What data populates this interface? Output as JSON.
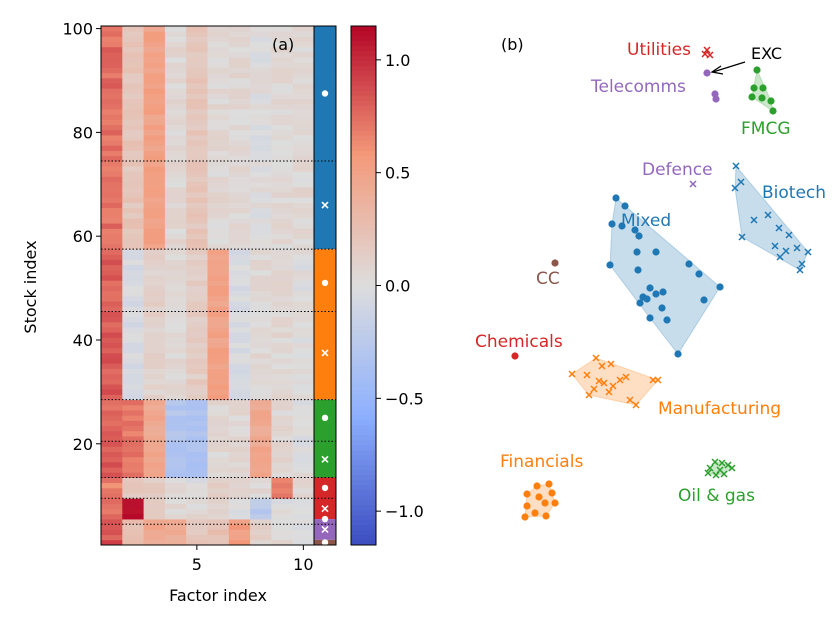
{
  "chart_data": [
    {
      "type": "heatmap",
      "panel_label": "(a)",
      "xlabel": "Factor index",
      "ylabel": "Stock index",
      "xticks": [
        5,
        10
      ],
      "yticks": [
        20,
        40,
        60,
        80,
        100
      ],
      "xlim": [
        0.5,
        10.5
      ],
      "ylim": [
        0.5,
        100.5
      ],
      "n_factors": 10,
      "n_stocks": 100,
      "group_boundaries": [
        4.5,
        9.5,
        13.5,
        20.5,
        28.5,
        45.5,
        57.5,
        74.5
      ],
      "base_loading": [
        0.75,
        0.2,
        0.15,
        0.0,
        0.0,
        0.05,
        0.0,
        0.0,
        0.0,
        0.0
      ],
      "blocks": [
        {
          "rows": [
            58,
            100
          ],
          "loadings": [
            0.0,
            0.0,
            0.35,
            0.05,
            0.2,
            0.0,
            0.05,
            0.0,
            0.05,
            0.05
          ]
        },
        {
          "rows": [
            29,
            57
          ],
          "loadings": [
            0.05,
            -0.25,
            -0.05,
            0.05,
            0.15,
            0.45,
            -0.05,
            0.05,
            0.05,
            0.0
          ]
        },
        {
          "rows": [
            14,
            28
          ],
          "loadings": [
            0.05,
            0.5,
            0.3,
            -0.3,
            -0.35,
            0.0,
            0.05,
            0.45,
            0.05,
            0.0
          ]
        },
        {
          "rows": [
            10,
            13
          ],
          "loadings": [
            -0.1,
            0.0,
            0.0,
            0.05,
            0.0,
            0.05,
            0.05,
            0.05,
            0.7,
            0.05
          ]
        },
        {
          "rows": [
            6,
            9
          ],
          "loadings": [
            0.0,
            0.9,
            0.0,
            0.05,
            0.05,
            0.0,
            0.0,
            -0.25,
            0.0,
            0.0
          ]
        },
        {
          "rows": [
            1,
            5
          ],
          "loadings": [
            0.1,
            0.05,
            0.3,
            0.4,
            0.2,
            0.2,
            0.55,
            0.1,
            0.05,
            0.0
          ]
        }
      ],
      "group_bar": [
        {
          "rows": [
            58,
            100
          ],
          "color": "#1f77b4"
        },
        {
          "rows": [
            29,
            57
          ],
          "color": "#ff7f0e"
        },
        {
          "rows": [
            14,
            28
          ],
          "color": "#2ca02c"
        },
        {
          "rows": [
            6,
            13
          ],
          "color": "#d62728"
        },
        {
          "rows": [
            2,
            5
          ],
          "color": "#9467bd"
        },
        {
          "rows": [
            1,
            1
          ],
          "color": "#8c564b"
        }
      ],
      "group_markers": [
        {
          "y": 87.5,
          "marker": "dot"
        },
        {
          "y": 66,
          "marker": "cross"
        },
        {
          "y": 51,
          "marker": "dot"
        },
        {
          "y": 37.5,
          "marker": "cross"
        },
        {
          "y": 25,
          "marker": "dot"
        },
        {
          "y": 17,
          "marker": "cross"
        },
        {
          "y": 11.5,
          "marker": "dot"
        },
        {
          "y": 7.5,
          "marker": "cross"
        },
        {
          "y": 5.5,
          "marker": "dot"
        },
        {
          "y": 3.5,
          "marker": "cross"
        },
        {
          "y": 1,
          "marker": "dot"
        }
      ],
      "colorbar": {
        "range": [
          -1.15,
          1.15
        ],
        "ticks": [
          -1.0,
          -0.5,
          0.0,
          0.5,
          1.0
        ],
        "tick_labels": [
          "−1.0",
          "−0.5",
          "0.0",
          "0.5",
          "1.0"
        ],
        "colormap": "coolwarm"
      }
    },
    {
      "type": "scatter",
      "panel_label": "(b)",
      "clusters": [
        {
          "name": "Utilities",
          "color": "#d62728",
          "marker": "cross",
          "points": [
            [
              707,
              50
            ],
            [
              710,
              55
            ],
            [
              705,
              54
            ]
          ]
        },
        {
          "name": "Telecomms",
          "color": "#9467bd",
          "marker": "dot",
          "points": [
            [
              707,
              73
            ],
            [
              715,
              94
            ],
            [
              716,
              99
            ]
          ]
        },
        {
          "name": "FMCG",
          "color": "#2ca02c",
          "marker": "dot",
          "hull": true,
          "points": [
            [
              757,
              70
            ],
            [
              754,
              88
            ],
            [
              763,
              88
            ],
            [
              752,
              97
            ],
            [
              762,
              98
            ],
            [
              771,
              101
            ],
            [
              773,
              111
            ]
          ]
        },
        {
          "name": "Defence",
          "color": "#9467bd",
          "marker": "cross",
          "points": [
            [
              693,
              184
            ]
          ]
        },
        {
          "name": "Biotech",
          "color": "#1f77b4",
          "marker": "cross",
          "hull": true,
          "points": [
            [
              736,
              166
            ],
            [
              741,
              182
            ],
            [
              735,
              188
            ],
            [
              754,
              220
            ],
            [
              768,
              215
            ],
            [
              742,
              237
            ],
            [
              775,
              246
            ],
            [
              779,
              228
            ],
            [
              789,
              235
            ],
            [
              786,
              251
            ],
            [
              780,
              257
            ],
            [
              797,
              248
            ],
            [
              808,
              252
            ],
            [
              802,
              264
            ],
            [
              800,
              270
            ]
          ]
        },
        {
          "name": "Mixed",
          "color": "#1f77b4",
          "marker": "dot",
          "hull": true,
          "points": [
            [
              616,
              198
            ],
            [
              625,
              206
            ],
            [
              612,
              224
            ],
            [
              622,
              226
            ],
            [
              635,
              230
            ],
            [
              639,
              236
            ],
            [
              656,
              252
            ],
            [
              637,
              252
            ],
            [
              610,
              265
            ],
            [
              638,
              270
            ],
            [
              689,
              264
            ],
            [
              699,
              274
            ],
            [
              650,
              288
            ],
            [
              656,
              294
            ],
            [
              663,
              292
            ],
            [
              643,
              297
            ],
            [
              647,
              299
            ],
            [
              640,
              303
            ],
            [
              704,
              300
            ],
            [
              720,
              287
            ],
            [
              662,
              308
            ],
            [
              650,
              318
            ],
            [
              667,
              320
            ],
            [
              678,
              354
            ]
          ]
        },
        {
          "name": "CC",
          "color": "#8c564b",
          "marker": "dot",
          "points": [
            [
              555,
              263
            ]
          ]
        },
        {
          "name": "Chemicals",
          "color": "#d62728",
          "marker": "dot",
          "points": [
            [
              515,
              356
            ]
          ]
        },
        {
          "name": "Manufacturing",
          "color": "#ff7f0e",
          "marker": "cross",
          "hull": true,
          "points": [
            [
              572,
              374
            ],
            [
              596,
              358
            ],
            [
              602,
              366
            ],
            [
              611,
              364
            ],
            [
              587,
              375
            ],
            [
              599,
              381
            ],
            [
              594,
              389
            ],
            [
              589,
              395
            ],
            [
              604,
              383
            ],
            [
              613,
              386
            ],
            [
              620,
              380
            ],
            [
              626,
              377
            ],
            [
              609,
              392
            ],
            [
              630,
              400
            ],
            [
              636,
              405
            ],
            [
              653,
              380
            ],
            [
              658,
              380
            ]
          ]
        },
        {
          "name": "Financials",
          "color": "#ff7f0e",
          "marker": "dot",
          "hull": true,
          "points": [
            [
              537,
              486
            ],
            [
              549,
              484
            ],
            [
              527,
              494
            ],
            [
              539,
              497
            ],
            [
              552,
              493
            ],
            [
              545,
              503
            ],
            [
              555,
              503
            ],
            [
              527,
              506
            ],
            [
              535,
              513
            ],
            [
              546,
              516
            ],
            [
              525,
              517
            ]
          ]
        },
        {
          "name": "Oil & gas",
          "color": "#2ca02c",
          "marker": "cross",
          "hull": true,
          "points": [
            [
              715,
              462
            ],
            [
              722,
              463
            ],
            [
              728,
              465
            ],
            [
              710,
              468
            ],
            [
              720,
              470
            ],
            [
              732,
              468
            ],
            [
              708,
              473
            ],
            [
              716,
              475
            ],
            [
              724,
              474
            ]
          ]
        }
      ],
      "annotation": {
        "text": "EXC",
        "target": "Telecomms"
      }
    }
  ]
}
